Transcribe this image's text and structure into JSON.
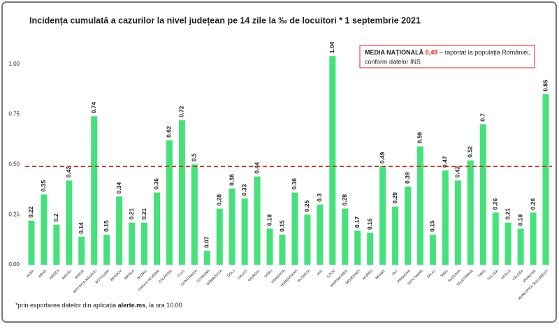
{
  "chart_data": {
    "type": "bar",
    "title": "Incidența cumulată a cazurilor la nivel județean pe 14 zile la ‰ de locuitori * 1 septembrie 2021",
    "categories": [
      "ALBA",
      "ARAD",
      "ARGEȘ",
      "BACĂU",
      "BIHOR",
      "BISTRIȚA-NĂSĂUD",
      "BOTOȘANI",
      "BRAȘOV",
      "BRĂILA",
      "BUZĂU",
      "CARAȘ-SEVERIN",
      "CĂLĂRAȘI",
      "CLUJ",
      "CONSTANȚA",
      "COVASNA",
      "DÂMBOVIȚA",
      "DOLJ",
      "GALAȚI",
      "GIURGIU",
      "GORJ",
      "HARGHITA",
      "HUNEDOARA",
      "IALOMIȚA",
      "IAȘI",
      "ILFOV",
      "MARAMUREȘ",
      "MEHEDINȚI",
      "MUREȘ",
      "NEAMȚ",
      "OLT",
      "PRAHOVA",
      "SATU MARE",
      "SĂLAJ",
      "SIBIU",
      "SUCEAVA",
      "TELEORMAN",
      "TIMIȘ",
      "TULCEA",
      "VASLUI",
      "VÂLCEA",
      "VRANCEA",
      "MUNICIPIUL BUCUREȘTI"
    ],
    "values": [
      0.22,
      0.35,
      0.2,
      0.42,
      0.14,
      0.74,
      0.15,
      0.34,
      0.21,
      0.21,
      0.36,
      0.62,
      0.72,
      0.5,
      0.07,
      0.28,
      0.38,
      0.33,
      0.44,
      0.18,
      0.15,
      0.36,
      0.25,
      0.3,
      1.04,
      0.28,
      0.17,
      0.16,
      0.49,
      0.29,
      0.39,
      0.59,
      0.15,
      0.47,
      0.42,
      0.52,
      0.7,
      0.26,
      0.21,
      0.18,
      0.26,
      0.85
    ],
    "color": "#45e27c",
    "ylim": [
      0,
      1.1
    ],
    "yticks": [
      {
        "value": 0,
        "label": "0.00"
      },
      0.25,
      {
        "value": 0.5,
        "label": "0.50"
      },
      0.75,
      {
        "value": 1,
        "label": "1.00"
      }
    ],
    "reference_line": {
      "value": 0.49,
      "label": "0,49",
      "color": "#d9261c"
    },
    "annotation": {
      "title": "MEDIA NAȚIONALĂ",
      "line1": "– raportat la populația României,",
      "line2": "conform datelor INS"
    },
    "footnote": {
      "before": "*prin exportarea datelor din aplicația ",
      "link": "alerte.ms",
      "after": ", la ora 10.00"
    }
  }
}
